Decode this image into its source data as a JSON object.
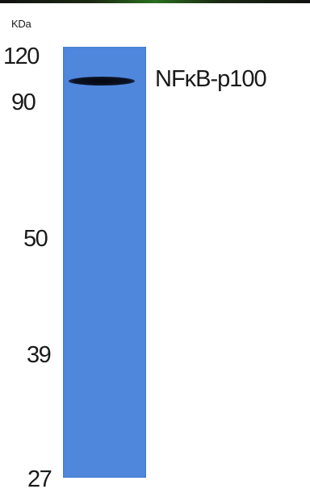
{
  "blot": {
    "unit_label": "KDa",
    "markers": [
      "120",
      "90",
      "50",
      "39",
      "27"
    ],
    "band_label": "NFκB-p100",
    "lane_color": "#4f87dd",
    "band_color": "#0c1224"
  }
}
